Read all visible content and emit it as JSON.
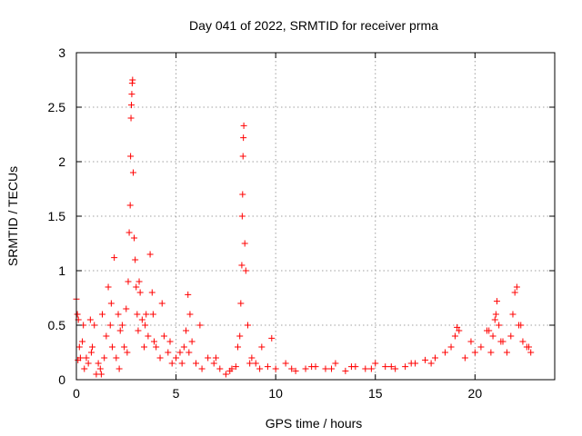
{
  "chart_data": {
    "type": "scatter",
    "title": "Day 041 of 2022, SRMTID for receiver prma",
    "xlabel": "GPS time / hours",
    "ylabel": "SRMTID / TECUs",
    "xlim": [
      0,
      24
    ],
    "ylim": [
      0,
      3
    ],
    "xticks": [
      0,
      5,
      10,
      15,
      20
    ],
    "xtick_labels": [
      "0",
      "5",
      "10",
      "15",
      "20"
    ],
    "yticks": [
      0,
      0.5,
      1,
      1.5,
      2,
      2.5,
      3
    ],
    "ytick_labels": [
      "0",
      "0.5",
      "1",
      "1.5",
      "2",
      "2.5",
      "3"
    ],
    "grid": true,
    "marker": "+",
    "marker_color": "#ff0000",
    "series": [
      {
        "name": "prma",
        "x": [
          0.0,
          0.05,
          0.1,
          0.15,
          0.2,
          0.3,
          0.4,
          0.5,
          0.6,
          0.7,
          0.8,
          0.9,
          1.0,
          1.1,
          1.2,
          1.3,
          1.4,
          1.5,
          1.6,
          1.7,
          1.8,
          1.9,
          2.0,
          2.1,
          2.2,
          2.3,
          2.4,
          2.5,
          2.6,
          2.65,
          2.7,
          2.72,
          2.74,
          2.76,
          2.78,
          2.8,
          2.82,
          2.85,
          2.9,
          2.95,
          3.0,
          3.05,
          3.1,
          3.2,
          3.3,
          3.4,
          3.5,
          3.6,
          3.7,
          3.8,
          3.9,
          4.0,
          4.2,
          4.4,
          4.6,
          4.8,
          5.0,
          5.2,
          5.4,
          5.5,
          5.6,
          5.7,
          5.8,
          6.0,
          6.3,
          6.6,
          6.9,
          7.2,
          7.5,
          7.8,
          8.0,
          8.1,
          8.2,
          8.25,
          8.3,
          8.32,
          8.34,
          8.36,
          8.38,
          8.4,
          8.45,
          8.5,
          8.6,
          8.8,
          9.0,
          9.3,
          9.6,
          10.0,
          10.5,
          11.0,
          11.5,
          12.0,
          12.5,
          13.0,
          13.5,
          14.0,
          14.5,
          15.0,
          15.5,
          16.0,
          16.5,
          17.0,
          17.5,
          18.0,
          18.5,
          18.8,
          19.0,
          19.2,
          19.5,
          19.8,
          20.0,
          20.3,
          20.6,
          20.8,
          20.9,
          21.0,
          21.05,
          21.1,
          21.2,
          21.4,
          21.6,
          21.8,
          21.9,
          22.0,
          22.1,
          22.2,
          22.4,
          22.6,
          22.8,
          0.08,
          0.35,
          0.75,
          1.25,
          1.75,
          2.15,
          2.55,
          3.15,
          3.45,
          3.85,
          4.3,
          4.7,
          5.3,
          5.65,
          6.2,
          7.0,
          7.7,
          8.7,
          9.2,
          9.8,
          10.8,
          11.8,
          12.8,
          13.8,
          14.8,
          15.8,
          16.8,
          17.8,
          19.1,
          20.7,
          21.3,
          22.3,
          22.7
        ],
        "y": [
          0.74,
          0.6,
          0.55,
          0.3,
          0.2,
          0.35,
          0.1,
          0.2,
          0.15,
          0.55,
          0.3,
          0.5,
          0.05,
          0.15,
          0.1,
          0.6,
          0.2,
          0.4,
          0.85,
          0.5,
          0.3,
          1.12,
          0.2,
          0.6,
          0.45,
          0.5,
          0.3,
          0.65,
          0.9,
          1.35,
          1.6,
          2.05,
          2.4,
          2.52,
          2.62,
          2.72,
          2.75,
          1.9,
          1.3,
          1.1,
          0.85,
          0.6,
          0.45,
          0.8,
          0.55,
          0.3,
          0.6,
          0.4,
          1.15,
          0.8,
          0.35,
          0.3,
          0.2,
          0.4,
          0.25,
          0.15,
          0.2,
          0.25,
          0.3,
          0.45,
          0.78,
          0.6,
          0.35,
          0.15,
          0.1,
          0.2,
          0.15,
          0.1,
          0.05,
          0.1,
          0.12,
          0.3,
          0.4,
          0.7,
          1.05,
          1.5,
          1.7,
          2.05,
          2.22,
          2.33,
          1.25,
          1.0,
          0.5,
          0.2,
          0.15,
          0.3,
          0.12,
          0.1,
          0.15,
          0.08,
          0.1,
          0.12,
          0.1,
          0.15,
          0.08,
          0.12,
          0.1,
          0.15,
          0.12,
          0.1,
          0.12,
          0.15,
          0.18,
          0.2,
          0.25,
          0.3,
          0.4,
          0.45,
          0.2,
          0.35,
          0.25,
          0.3,
          0.45,
          0.25,
          0.4,
          0.55,
          0.6,
          0.72,
          0.5,
          0.35,
          0.25,
          0.4,
          0.6,
          0.8,
          0.85,
          0.5,
          0.35,
          0.3,
          0.25,
          0.18,
          0.5,
          0.25,
          0.05,
          0.7,
          0.1,
          0.25,
          0.9,
          0.5,
          0.6,
          0.7,
          0.35,
          0.15,
          0.25,
          0.5,
          0.2,
          0.08,
          0.15,
          0.1,
          0.38,
          0.1,
          0.12,
          0.1,
          0.12,
          0.1,
          0.12,
          0.15,
          0.15,
          0.48,
          0.45,
          0.35,
          0.5,
          0.3
        ]
      }
    ]
  }
}
